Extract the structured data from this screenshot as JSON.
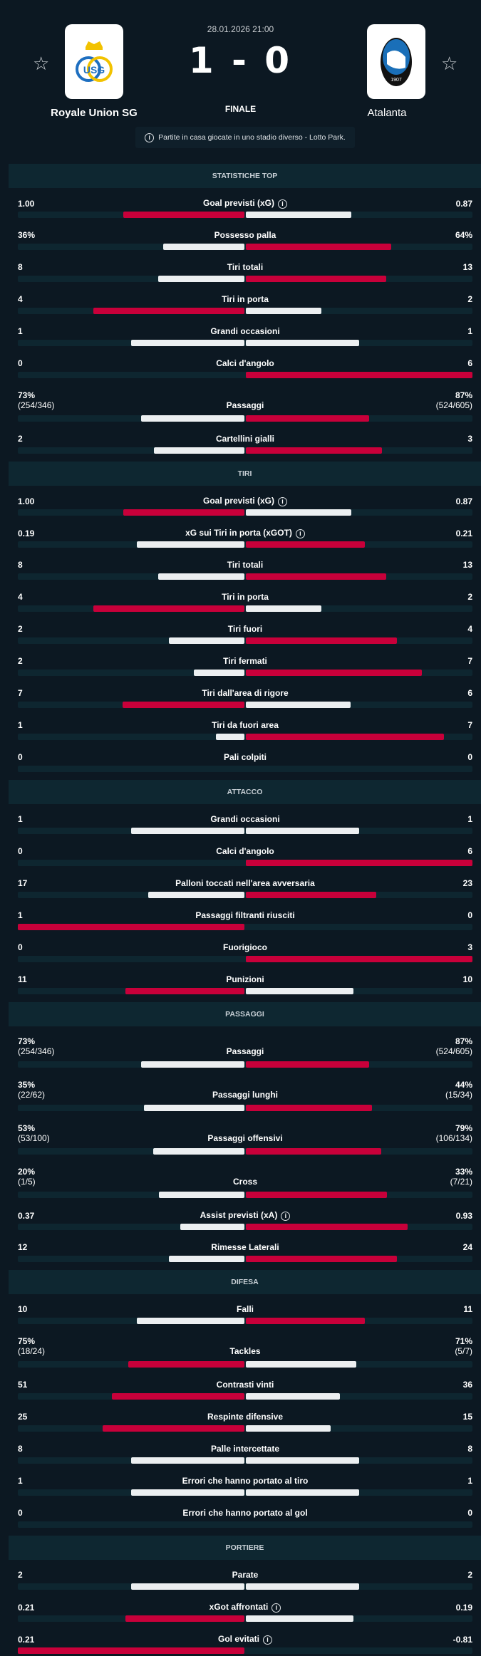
{
  "match": {
    "date": "28.01.2026 21:00",
    "score": "1 - 0",
    "status": "FINALE",
    "home": "Royale Union SG",
    "away": "Atalanta",
    "info": "Partite in casa giocate in uno stadio diverso - Lotto Park.",
    "home_logo_text": "USG",
    "away_logo_text": "ATALANTA 1907"
  },
  "colors": {
    "accent": "#c8003a",
    "bar": "#eceff1",
    "bg": "#0c1822"
  },
  "sections": [
    {
      "title": "STATISTICHE TOP",
      "rows": [
        {
          "label": "Goal previsti (xG)",
          "info": true,
          "l": "1.00",
          "r": "0.87",
          "lv": 1.0,
          "rv": 0.87
        },
        {
          "label": "Possesso palla",
          "l": "36%",
          "r": "64%",
          "lv": 36,
          "rv": 64
        },
        {
          "label": "Tiri totali",
          "l": "8",
          "r": "13",
          "lv": 8,
          "rv": 13
        },
        {
          "label": "Tiri in porta",
          "l": "4",
          "r": "2",
          "lv": 4,
          "rv": 2
        },
        {
          "label": "Grandi occasioni",
          "l": "1",
          "r": "1",
          "lv": 1,
          "rv": 1
        },
        {
          "label": "Calci d'angolo",
          "l": "0",
          "r": "6",
          "lv": 0,
          "rv": 6
        },
        {
          "label": "Passaggi",
          "l": "73%",
          "ls": "(254/346)",
          "r": "87%",
          "rs": "(524/605)",
          "lv": 73,
          "rv": 87
        },
        {
          "label": "Cartellini gialli",
          "l": "2",
          "r": "3",
          "lv": 2,
          "rv": 3
        }
      ]
    },
    {
      "title": "TIRI",
      "rows": [
        {
          "label": "Goal previsti (xG)",
          "info": true,
          "l": "1.00",
          "r": "0.87",
          "lv": 1.0,
          "rv": 0.87
        },
        {
          "label": "xG sui Tiri in porta (xGOT)",
          "info": true,
          "l": "0.19",
          "r": "0.21",
          "lv": 0.19,
          "rv": 0.21
        },
        {
          "label": "Tiri totali",
          "l": "8",
          "r": "13",
          "lv": 8,
          "rv": 13
        },
        {
          "label": "Tiri in porta",
          "l": "4",
          "r": "2",
          "lv": 4,
          "rv": 2
        },
        {
          "label": "Tiri fuori",
          "l": "2",
          "r": "4",
          "lv": 2,
          "rv": 4
        },
        {
          "label": "Tiri fermati",
          "l": "2",
          "r": "7",
          "lv": 2,
          "rv": 7
        },
        {
          "label": "Tiri dall'area di rigore",
          "l": "7",
          "r": "6",
          "lv": 7,
          "rv": 6
        },
        {
          "label": "Tiri da fuori area",
          "l": "1",
          "r": "7",
          "lv": 1,
          "rv": 7
        },
        {
          "label": "Pali colpiti",
          "l": "0",
          "r": "0",
          "lv": 0,
          "rv": 0
        }
      ]
    },
    {
      "title": "ATTACCO",
      "rows": [
        {
          "label": "Grandi occasioni",
          "l": "1",
          "r": "1",
          "lv": 1,
          "rv": 1
        },
        {
          "label": "Calci d'angolo",
          "l": "0",
          "r": "6",
          "lv": 0,
          "rv": 6
        },
        {
          "label": "Palloni toccati nell'area avversaria",
          "l": "17",
          "r": "23",
          "lv": 17,
          "rv": 23
        },
        {
          "label": "Passaggi filtranti riusciti",
          "l": "1",
          "r": "0",
          "lv": 1,
          "rv": 0
        },
        {
          "label": "Fuorigioco",
          "l": "0",
          "r": "3",
          "lv": 0,
          "rv": 3
        },
        {
          "label": "Punizioni",
          "l": "11",
          "r": "10",
          "lv": 11,
          "rv": 10
        }
      ]
    },
    {
      "title": "PASSAGGI",
      "rows": [
        {
          "label": "Passaggi",
          "l": "73%",
          "ls": "(254/346)",
          "r": "87%",
          "rs": "(524/605)",
          "lv": 73,
          "rv": 87
        },
        {
          "label": "Passaggi lunghi",
          "l": "35%",
          "ls": "(22/62)",
          "r": "44%",
          "rs": "(15/34)",
          "lv": 35,
          "rv": 44
        },
        {
          "label": "Passaggi offensivi",
          "l": "53%",
          "ls": "(53/100)",
          "r": "79%",
          "rs": "(106/134)",
          "lv": 53,
          "rv": 79
        },
        {
          "label": "Cross",
          "l": "20%",
          "ls": "(1/5)",
          "r": "33%",
          "rs": "(7/21)",
          "lv": 20,
          "rv": 33
        },
        {
          "label": "Assist previsti (xA)",
          "info": true,
          "l": "0.37",
          "r": "0.93",
          "lv": 0.37,
          "rv": 0.93
        },
        {
          "label": "Rimesse Laterali",
          "l": "12",
          "r": "24",
          "lv": 12,
          "rv": 24
        }
      ]
    },
    {
      "title": "DIFESA",
      "rows": [
        {
          "label": "Falli",
          "l": "10",
          "r": "11",
          "lv": 10,
          "rv": 11
        },
        {
          "label": "Tackles",
          "l": "75%",
          "ls": "(18/24)",
          "r": "71%",
          "rs": "(5/7)",
          "lv": 75,
          "rv": 71
        },
        {
          "label": "Contrasti vinti",
          "l": "51",
          "r": "36",
          "lv": 51,
          "rv": 36
        },
        {
          "label": "Respinte difensive",
          "l": "25",
          "r": "15",
          "lv": 25,
          "rv": 15
        },
        {
          "label": "Palle intercettate",
          "l": "8",
          "r": "8",
          "lv": 8,
          "rv": 8
        },
        {
          "label": "Errori che hanno portato al tiro",
          "l": "1",
          "r": "1",
          "lv": 1,
          "rv": 1
        },
        {
          "label": "Errori che hanno portato al gol",
          "l": "0",
          "r": "0",
          "lv": 0,
          "rv": 0
        }
      ]
    },
    {
      "title": "PORTIERE",
      "rows": [
        {
          "label": "Parate",
          "l": "2",
          "r": "2",
          "lv": 2,
          "rv": 2
        },
        {
          "label": "xGot affrontati",
          "info": true,
          "l": "0.21",
          "r": "0.19",
          "lv": 0.21,
          "rv": 0.19
        },
        {
          "label": "Gol evitati",
          "info": true,
          "l": "0.21",
          "r": "-0.81",
          "lv": 0.21,
          "rv": -0.81
        }
      ]
    }
  ]
}
